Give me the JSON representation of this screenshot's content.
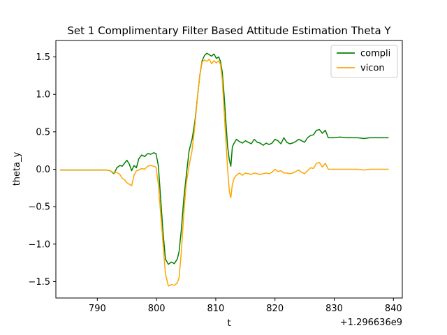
{
  "chart_data": {
    "type": "line",
    "title": "Set 1 Complimentary Filter Based Attitude Estimation Theta Y",
    "xlabel": "t",
    "ylabel": "theta_y",
    "x_offset_label": "+1.296636e9",
    "xlim": [
      783.0,
      841.5
    ],
    "ylim": [
      -1.72,
      1.72
    ],
    "xticks": [
      790,
      800,
      810,
      820,
      830,
      840
    ],
    "xtick_labels": [
      "790",
      "800",
      "810",
      "820",
      "830",
      "840"
    ],
    "yticks": [
      -1.5,
      -1.0,
      -0.5,
      0.0,
      0.5,
      1.0,
      1.5
    ],
    "ytick_labels": [
      "−1.5",
      "−1.0",
      "−0.5",
      "0.0",
      "0.5",
      "1.0",
      "1.5"
    ],
    "grid": false,
    "legend_position": "top-right",
    "series": [
      {
        "name": "compli",
        "color": "#008000",
        "x": [
          783.7,
          786,
          788,
          790,
          791.5,
          792.2,
          792.8,
          793.3,
          793.8,
          794.2,
          794.6,
          795.0,
          795.4,
          795.8,
          796.2,
          796.6,
          797.0,
          797.5,
          798.0,
          798.5,
          799.0,
          799.5,
          799.9,
          800.3,
          800.7,
          801.1,
          801.5,
          802.0,
          802.5,
          803.0,
          803.5,
          803.8,
          804.2,
          804.6,
          805.0,
          805.5,
          806.0,
          806.5,
          806.9,
          807.3,
          807.7,
          808.1,
          808.5,
          808.9,
          809.3,
          809.7,
          810.1,
          810.5,
          810.8,
          811.1,
          811.4,
          811.7,
          812.0,
          812.3,
          812.55,
          812.8,
          813.1,
          813.5,
          814.0,
          814.5,
          815.0,
          815.5,
          816.0,
          816.5,
          817.0,
          817.5,
          818.0,
          818.5,
          819.0,
          819.5,
          820.0,
          820.5,
          821.0,
          821.5,
          822.0,
          822.5,
          823.0,
          823.5,
          824.0,
          824.5,
          825.0,
          825.5,
          826.0,
          826.5,
          827.0,
          827.5,
          828.0,
          828.5,
          829.0,
          830,
          831,
          832,
          833,
          834,
          835,
          836,
          837,
          838,
          839.2
        ],
        "y": [
          -0.01,
          -0.01,
          -0.01,
          -0.01,
          -0.01,
          -0.02,
          -0.06,
          0.02,
          0.05,
          0.04,
          0.08,
          0.12,
          0.07,
          -0.02,
          0.05,
          0.02,
          0.14,
          0.19,
          0.17,
          0.21,
          0.2,
          0.22,
          0.21,
          0.05,
          -0.4,
          -0.85,
          -1.2,
          -1.27,
          -1.24,
          -1.26,
          -1.2,
          -1.1,
          -0.8,
          -0.4,
          -0.1,
          0.25,
          0.4,
          0.65,
          0.95,
          1.25,
          1.45,
          1.52,
          1.55,
          1.53,
          1.51,
          1.54,
          1.48,
          1.5,
          1.44,
          1.3,
          1.0,
          0.65,
          0.3,
          0.12,
          0.04,
          0.3,
          0.35,
          0.4,
          0.37,
          0.35,
          0.38,
          0.36,
          0.34,
          0.4,
          0.36,
          0.35,
          0.32,
          0.35,
          0.33,
          0.35,
          0.4,
          0.38,
          0.34,
          0.42,
          0.36,
          0.34,
          0.35,
          0.37,
          0.4,
          0.38,
          0.36,
          0.42,
          0.45,
          0.46,
          0.52,
          0.53,
          0.48,
          0.52,
          0.42,
          0.42,
          0.43,
          0.42,
          0.42,
          0.42,
          0.41,
          0.42,
          0.42,
          0.42,
          0.42
        ]
      },
      {
        "name": "vicon",
        "color": "#FFA500",
        "x": [
          783.7,
          786,
          788,
          790,
          791.5,
          792.2,
          792.8,
          793.3,
          793.8,
          794.2,
          794.6,
          795.0,
          795.4,
          795.8,
          796.2,
          796.6,
          797.0,
          797.5,
          798.0,
          798.5,
          799.0,
          799.5,
          799.9,
          800.3,
          800.7,
          801.1,
          801.5,
          802.0,
          802.5,
          803.0,
          803.5,
          803.8,
          804.2,
          804.6,
          805.0,
          805.5,
          806.0,
          806.5,
          806.9,
          807.3,
          807.7,
          808.1,
          808.5,
          808.9,
          809.3,
          809.7,
          810.1,
          810.5,
          810.8,
          811.1,
          811.4,
          811.7,
          812.0,
          812.3,
          812.55,
          812.8,
          813.1,
          813.5,
          814.0,
          814.5,
          815.0,
          815.5,
          816.0,
          816.5,
          817.0,
          817.5,
          818.0,
          818.5,
          819.0,
          819.5,
          820.0,
          820.5,
          821.0,
          821.5,
          822.0,
          822.5,
          823.0,
          823.5,
          824.0,
          824.5,
          825.0,
          825.5,
          826.0,
          826.5,
          827.0,
          827.5,
          828.0,
          828.5,
          829.0,
          830,
          831,
          832,
          833,
          834,
          835,
          836,
          837,
          838,
          839.2
        ],
        "y": [
          -0.01,
          -0.01,
          -0.01,
          -0.01,
          -0.01,
          -0.02,
          -0.05,
          -0.04,
          -0.07,
          -0.12,
          -0.14,
          -0.18,
          -0.2,
          -0.22,
          -0.08,
          -0.02,
          -0.01,
          0.01,
          0.0,
          0.04,
          0.05,
          0.04,
          0.03,
          -0.2,
          -0.6,
          -1.0,
          -1.4,
          -1.56,
          -1.54,
          -1.55,
          -1.52,
          -1.45,
          -1.1,
          -0.6,
          -0.2,
          0.05,
          0.25,
          0.6,
          0.95,
          1.25,
          1.43,
          1.46,
          1.44,
          1.47,
          1.41,
          1.45,
          1.42,
          1.45,
          1.4,
          1.2,
          0.8,
          0.4,
          0.0,
          -0.3,
          -0.38,
          -0.2,
          -0.12,
          -0.08,
          -0.05,
          -0.08,
          -0.05,
          -0.06,
          -0.07,
          -0.05,
          -0.06,
          -0.07,
          -0.06,
          -0.05,
          -0.06,
          -0.04,
          0.0,
          -0.03,
          -0.02,
          -0.05,
          -0.05,
          -0.06,
          -0.05,
          -0.03,
          -0.01,
          -0.04,
          -0.06,
          -0.02,
          0.02,
          0.01,
          0.08,
          0.09,
          0.03,
          0.08,
          0.0,
          0.0,
          0.0,
          0.0,
          0.0,
          0.0,
          -0.01,
          0.0,
          0.0,
          0.0,
          0.0
        ]
      }
    ]
  }
}
